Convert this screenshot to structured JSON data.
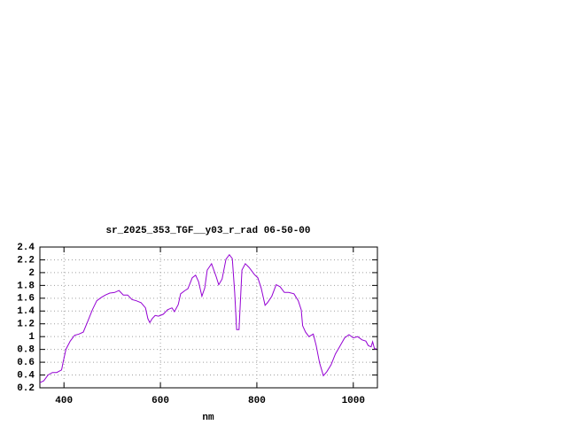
{
  "chart_data": {
    "type": "line",
    "title": "sr_2025_353_TGF__y03_r_rad 06-50-00",
    "x_label": "nm",
    "color": "#9400d3",
    "grid": true,
    "xlim": [
      350,
      1050
    ],
    "ylim": [
      0.2,
      2.4
    ],
    "xticks": [
      400,
      600,
      800,
      1000
    ],
    "yticks": [
      0.2,
      0.4,
      0.6,
      0.8,
      1,
      1.2,
      1.4,
      1.6,
      1.8,
      2,
      2.2,
      2.4
    ],
    "x": [
      350,
      358,
      367,
      376,
      385,
      395,
      398,
      404,
      413,
      422,
      431,
      440,
      450,
      459,
      468,
      477,
      486,
      495,
      505,
      514,
      523,
      532,
      541,
      550,
      560,
      569,
      574,
      578,
      583,
      589,
      596,
      606,
      615,
      624,
      629,
      637,
      642,
      651,
      657,
      666,
      673,
      679,
      686,
      692,
      697,
      706,
      716,
      721,
      728,
      736,
      743,
      749,
      754,
      758,
      763,
      769,
      776,
      784,
      795,
      802,
      809,
      817,
      822,
      831,
      840,
      848,
      857,
      866,
      877,
      886,
      892,
      895,
      901,
      908,
      917,
      923,
      930,
      938,
      945,
      954,
      963,
      973,
      982,
      991,
      1000,
      1009,
      1018,
      1026,
      1031,
      1037,
      1040,
      1044,
      1048
    ],
    "values": [
      0.28,
      0.31,
      0.4,
      0.44,
      0.44,
      0.48,
      0.59,
      0.8,
      0.93,
      1.02,
      1.04,
      1.07,
      1.25,
      1.42,
      1.56,
      1.61,
      1.65,
      1.68,
      1.69,
      1.72,
      1.65,
      1.65,
      1.58,
      1.56,
      1.53,
      1.45,
      1.28,
      1.22,
      1.28,
      1.33,
      1.32,
      1.35,
      1.42,
      1.45,
      1.39,
      1.5,
      1.67,
      1.72,
      1.75,
      1.92,
      1.96,
      1.86,
      1.63,
      1.76,
      2.04,
      2.14,
      1.93,
      1.81,
      1.9,
      2.21,
      2.28,
      2.22,
      1.69,
      1.11,
      1.11,
      2.04,
      2.14,
      2.08,
      1.97,
      1.92,
      1.76,
      1.49,
      1.53,
      1.63,
      1.81,
      1.78,
      1.69,
      1.69,
      1.67,
      1.56,
      1.42,
      1.17,
      1.07,
      1.0,
      1.04,
      0.86,
      0.59,
      0.39,
      0.45,
      0.56,
      0.73,
      0.86,
      0.98,
      1.03,
      0.98,
      1.0,
      0.95,
      0.93,
      0.86,
      0.84,
      0.92,
      0.81,
      0.81
    ]
  }
}
